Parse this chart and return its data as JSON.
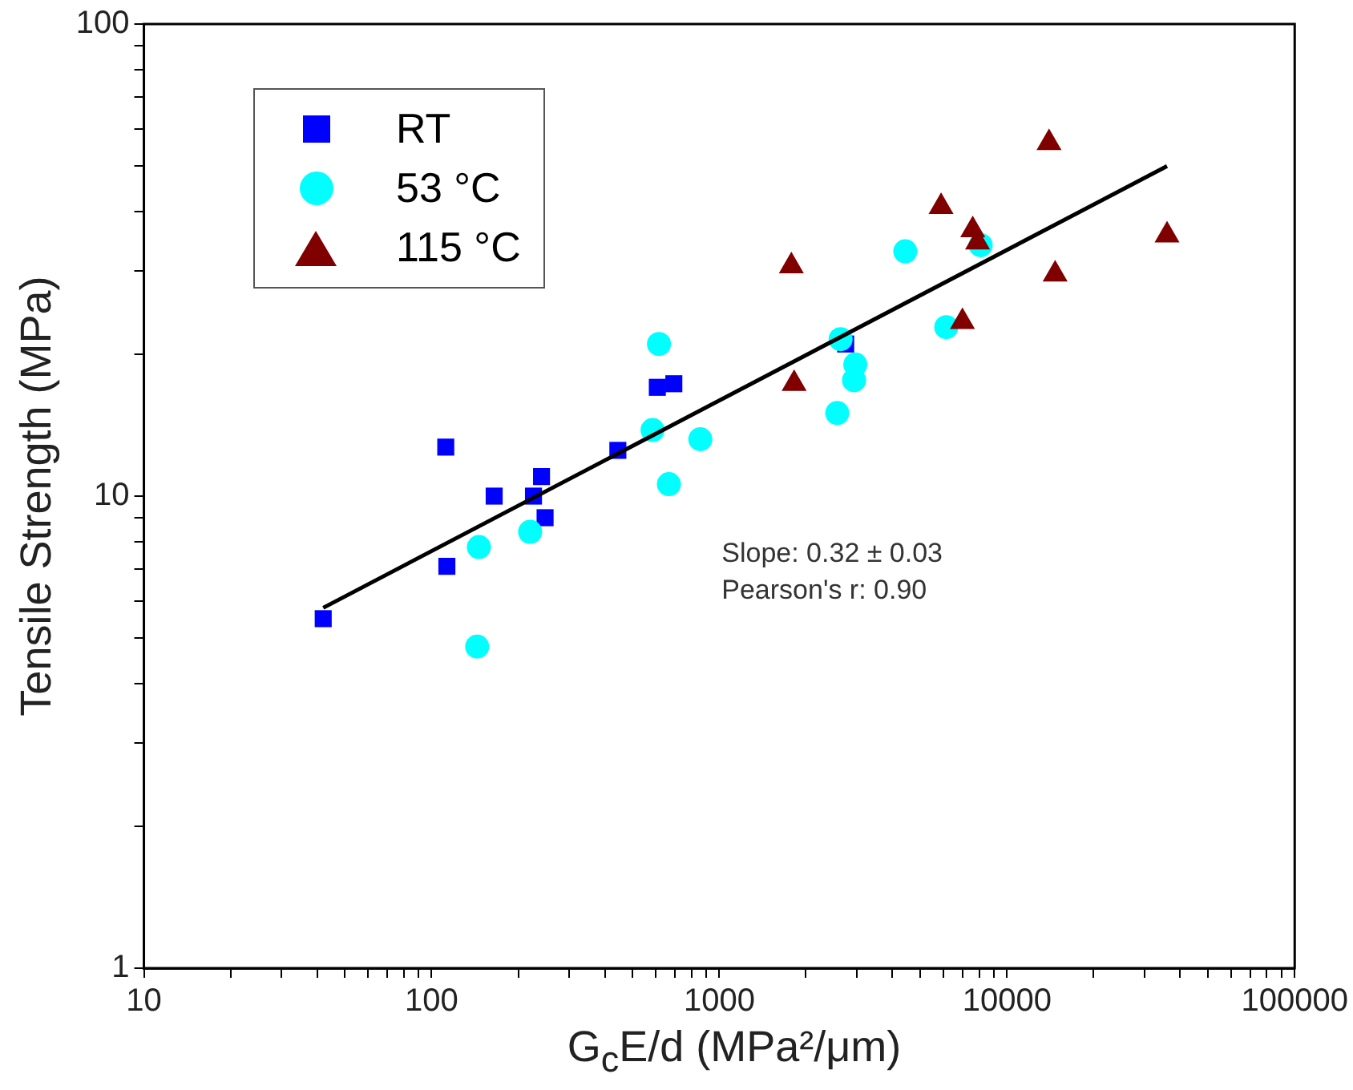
{
  "chart_data": {
    "type": "scatter",
    "xlabel": "G$_{c}$E/d (MPa²/μm)",
    "ylabel": "Tensile Strength (MPa)",
    "log": "xy",
    "grid": false,
    "legend": "top left",
    "xlim": [
      10,
      100000
    ],
    "ylim": [
      1,
      100
    ],
    "xticks": [
      10,
      {
        "value": 20,
        "label": null
      },
      {
        "value": 30,
        "label": null
      },
      {
        "value": 40,
        "label": null
      },
      {
        "value": 50,
        "label": null
      },
      {
        "value": 60,
        "label": null
      },
      {
        "value": 70,
        "label": null
      },
      {
        "value": 80,
        "label": null
      },
      {
        "value": 90,
        "label": null
      },
      100,
      {
        "value": 200,
        "label": null
      },
      {
        "value": 300,
        "label": null
      },
      {
        "value": 400,
        "label": null
      },
      {
        "value": 500,
        "label": null
      },
      {
        "value": 600,
        "label": null
      },
      {
        "value": 700,
        "label": null
      },
      {
        "value": 800,
        "label": null
      },
      {
        "value": 900,
        "label": null
      },
      1000,
      {
        "value": 2000,
        "label": null
      },
      {
        "value": 3000,
        "label": null
      },
      {
        "value": 4000,
        "label": null
      },
      {
        "value": 5000,
        "label": null
      },
      {
        "value": 6000,
        "label": null
      },
      {
        "value": 7000,
        "label": null
      },
      {
        "value": 8000,
        "label": null
      },
      {
        "value": 9000,
        "label": null
      },
      10000,
      {
        "value": 20000,
        "label": null
      },
      {
        "value": 30000,
        "label": null
      },
      {
        "value": 40000,
        "label": null
      },
      {
        "value": 50000,
        "label": null
      },
      {
        "value": 60000,
        "label": null
      },
      {
        "value": 70000,
        "label": null
      },
      {
        "value": 80000,
        "label": null
      },
      {
        "value": 90000,
        "label": null
      },
      100000
    ],
    "yticks": [
      1,
      {
        "value": 2,
        "label": null
      },
      {
        "value": 3,
        "label": null
      },
      {
        "value": 4,
        "label": null
      },
      {
        "value": 5,
        "label": null
      },
      {
        "value": 6,
        "label": null
      },
      {
        "value": 7,
        "label": null
      },
      {
        "value": 8,
        "label": null
      },
      {
        "value": 9,
        "label": null
      },
      10,
      {
        "value": 20,
        "label": null
      },
      {
        "value": 30,
        "label": null
      },
      {
        "value": 40,
        "label": null
      },
      {
        "value": 50,
        "label": null
      },
      {
        "value": 60,
        "label": null
      },
      {
        "value": 70,
        "label": null
      },
      {
        "value": 80,
        "label": null
      },
      {
        "value": 90,
        "label": null
      },
      100
    ],
    "series": [
      {
        "name": "RT",
        "color": "#0000ff",
        "marker": "square",
        "x": [
          42,
          112,
          113,
          165,
          226,
          241,
          248,
          444,
          609,
          695,
          2750
        ],
        "values": [
          5.5,
          12.7,
          7.1,
          10,
          10,
          11,
          9,
          12.5,
          17,
          17.3,
          21
        ]
      },
      {
        "name": "53 °C",
        "color": "#00ffff",
        "marker": "circle",
        "x": [
          144,
          146,
          220,
          586,
          617,
          668,
          859,
          2570,
          2640,
          2940,
          2970,
          4430,
          6150,
          8100
        ],
        "values": [
          4.8,
          7.8,
          8.4,
          13.8,
          21,
          10.6,
          13.2,
          15,
          21.5,
          17.6,
          19,
          33,
          22.8,
          34
        ]
      },
      {
        "name": "115 °C",
        "color": "#800000",
        "marker": "triangle",
        "x": [
          1780,
          1820,
          5900,
          7000,
          7600,
          7900,
          14000,
          14700,
          36000
        ],
        "values": [
          30.7,
          17.3,
          41,
          23.4,
          36.6,
          34.5,
          56,
          29.5,
          35.7
        ]
      },
      {
        "type": "line",
        "color": "#000000",
        "marker": "none",
        "x": [
          42,
          36000
        ],
        "values": [
          5.8,
          50
        ]
      }
    ],
    "annotations": [
      "Slope: 0.32 ± 0.03",
      "Pearson's r: 0.90"
    ]
  }
}
